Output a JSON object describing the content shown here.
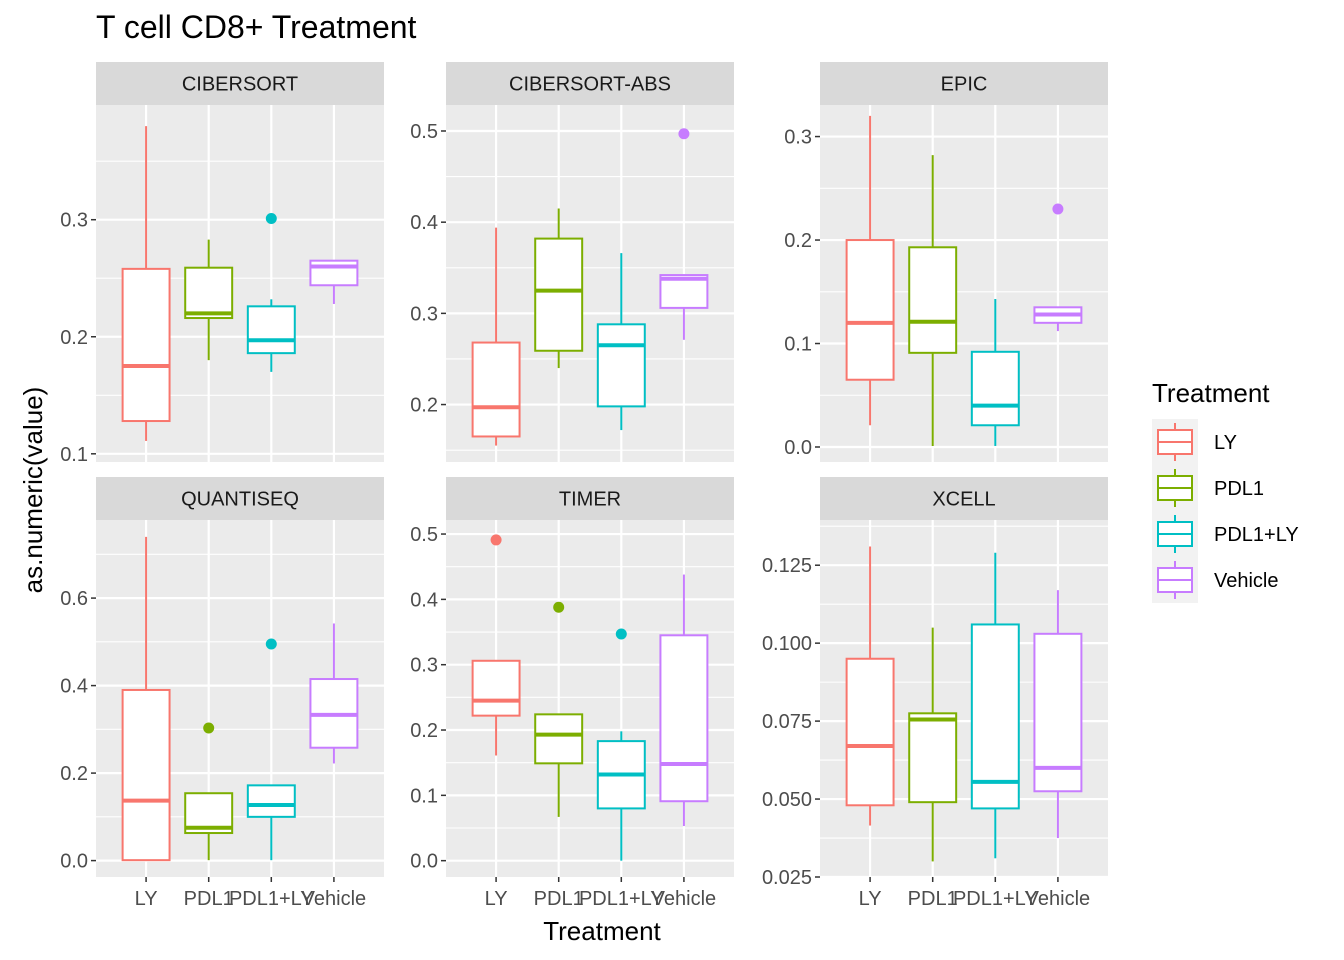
{
  "chart_data": {
    "type": "box",
    "title": "T cell CD8+ Treatment",
    "xlabel": "Treatment",
    "ylabel": "as.numeric(value)",
    "categories": [
      "LY",
      "PDL1",
      "PDL1+LY",
      "Vehicle"
    ],
    "legend": {
      "title": "Treatment",
      "position": "right",
      "entries": [
        "LY",
        "PDL1",
        "PDL1+LY",
        "Vehicle"
      ]
    },
    "colors": {
      "LY": "#F8766D",
      "PDL1": "#7CAE00",
      "PDL1+LY": "#00BFC4",
      "Vehicle": "#C77CFF",
      "panel_bg": "#EBEBEB",
      "strip_bg": "#D9D9D9",
      "grid": "#FFFFFF"
    },
    "panels": [
      {
        "strip": "CIBERSORT",
        "ylim": [
          0.093,
          0.398
        ],
        "yticks": [
          0.1,
          0.2,
          0.3
        ],
        "yticklabels": [
          "0.1",
          "0.2",
          "0.3"
        ],
        "boxes": [
          {
            "group": "LY",
            "min": 0.111,
            "q1": 0.128,
            "median": 0.175,
            "q3": 0.258,
            "max": 0.38,
            "outliers": []
          },
          {
            "group": "PDL1",
            "min": 0.18,
            "q1": 0.216,
            "median": 0.22,
            "q3": 0.259,
            "max": 0.283,
            "outliers": []
          },
          {
            "group": "PDL1+LY",
            "min": 0.17,
            "q1": 0.186,
            "median": 0.197,
            "q3": 0.226,
            "max": 0.232,
            "outliers": [
              0.301
            ]
          },
          {
            "group": "Vehicle",
            "min": 0.228,
            "q1": 0.244,
            "median": 0.26,
            "q3": 0.265,
            "max": 0.265,
            "outliers": []
          }
        ]
      },
      {
        "strip": "CIBERSORT-ABS",
        "ylim": [
          0.137,
          0.5285
        ],
        "yticks": [
          0.2,
          0.3,
          0.4,
          0.5
        ],
        "yticklabels": [
          "0.2",
          "0.3",
          "0.4",
          "0.5"
        ],
        "boxes": [
          {
            "group": "LY",
            "min": 0.155,
            "q1": 0.165,
            "median": 0.197,
            "q3": 0.268,
            "max": 0.394,
            "outliers": []
          },
          {
            "group": "PDL1",
            "min": 0.24,
            "q1": 0.259,
            "median": 0.325,
            "q3": 0.382,
            "max": 0.415,
            "outliers": []
          },
          {
            "group": "PDL1+LY",
            "min": 0.172,
            "q1": 0.198,
            "median": 0.265,
            "q3": 0.288,
            "max": 0.366,
            "outliers": []
          },
          {
            "group": "Vehicle",
            "min": 0.271,
            "q1": 0.306,
            "median": 0.338,
            "q3": 0.342,
            "max": 0.342,
            "outliers": [
              0.497
            ]
          }
        ]
      },
      {
        "strip": "EPIC",
        "ylim": [
          -0.0145,
          0.3305
        ],
        "yticks": [
          0.0,
          0.1,
          0.2,
          0.3
        ],
        "yticklabels": [
          "0.0",
          "0.1",
          "0.2",
          "0.3"
        ],
        "boxes": [
          {
            "group": "LY",
            "min": 0.021,
            "q1": 0.065,
            "median": 0.12,
            "q3": 0.2,
            "max": 0.32,
            "outliers": []
          },
          {
            "group": "PDL1",
            "min": 0.001,
            "q1": 0.091,
            "median": 0.121,
            "q3": 0.193,
            "max": 0.282,
            "outliers": []
          },
          {
            "group": "PDL1+LY",
            "min": 0.001,
            "q1": 0.021,
            "median": 0.04,
            "q3": 0.092,
            "max": 0.143,
            "outliers": []
          },
          {
            "group": "Vehicle",
            "min": 0.112,
            "q1": 0.12,
            "median": 0.128,
            "q3": 0.135,
            "max": 0.135,
            "outliers": [
              0.23
            ]
          }
        ]
      },
      {
        "strip": "QUANTISEQ",
        "ylim": [
          -0.0375,
          0.7785
        ],
        "yticks": [
          0.0,
          0.2,
          0.4,
          0.6
        ],
        "yticklabels": [
          "0.0",
          "0.2",
          "0.4",
          "0.6"
        ],
        "boxes": [
          {
            "group": "LY",
            "min": 0.0,
            "q1": 0.001,
            "median": 0.137,
            "q3": 0.39,
            "max": 0.74,
            "outliers": []
          },
          {
            "group": "PDL1",
            "min": 0.001,
            "q1": 0.063,
            "median": 0.075,
            "q3": 0.154,
            "max": 0.154,
            "outliers": [
              0.303
            ]
          },
          {
            "group": "PDL1+LY",
            "min": 0.001,
            "q1": 0.1,
            "median": 0.127,
            "q3": 0.172,
            "max": 0.172,
            "outliers": [
              0.495
            ]
          },
          {
            "group": "Vehicle",
            "min": 0.222,
            "q1": 0.258,
            "median": 0.333,
            "q3": 0.415,
            "max": 0.542,
            "outliers": []
          }
        ]
      },
      {
        "strip": "TIMER",
        "ylim": [
          -0.025,
          0.5215
        ],
        "yticks": [
          0.0,
          0.1,
          0.2,
          0.3,
          0.4,
          0.5
        ],
        "yticklabels": [
          "0.0",
          "0.1",
          "0.2",
          "0.3",
          "0.4",
          "0.5"
        ],
        "boxes": [
          {
            "group": "LY",
            "min": 0.161,
            "q1": 0.222,
            "median": 0.245,
            "q3": 0.306,
            "max": 0.306,
            "outliers": [
              0.491
            ]
          },
          {
            "group": "PDL1",
            "min": 0.067,
            "q1": 0.149,
            "median": 0.193,
            "q3": 0.224,
            "max": 0.224,
            "outliers": [
              0.388
            ]
          },
          {
            "group": "PDL1+LY",
            "min": 0.0,
            "q1": 0.08,
            "median": 0.132,
            "q3": 0.183,
            "max": 0.198,
            "outliers": [
              0.347
            ]
          },
          {
            "group": "Vehicle",
            "min": 0.053,
            "q1": 0.091,
            "median": 0.148,
            "q3": 0.345,
            "max": 0.438,
            "outliers": []
          }
        ]
      },
      {
        "strip": "XCELL",
        "ylim": [
          0.025,
          0.1395
        ],
        "yticks": [
          0.025,
          0.05,
          0.075,
          0.1,
          0.125
        ],
        "yticklabels": [
          "0.025",
          "0.050",
          "0.075",
          "0.100",
          "0.125"
        ],
        "boxes": [
          {
            "group": "LY",
            "min": 0.0415,
            "q1": 0.048,
            "median": 0.067,
            "q3": 0.095,
            "max": 0.131,
            "outliers": []
          },
          {
            "group": "PDL1",
            "min": 0.03,
            "q1": 0.049,
            "median": 0.0755,
            "q3": 0.0775,
            "max": 0.105,
            "outliers": []
          },
          {
            "group": "PDL1+LY",
            "min": 0.031,
            "q1": 0.047,
            "median": 0.0555,
            "q3": 0.106,
            "max": 0.129,
            "outliers": []
          },
          {
            "group": "Vehicle",
            "min": 0.0375,
            "q1": 0.0525,
            "median": 0.06,
            "q3": 0.103,
            "max": 0.117,
            "outliers": []
          }
        ]
      }
    ]
  }
}
